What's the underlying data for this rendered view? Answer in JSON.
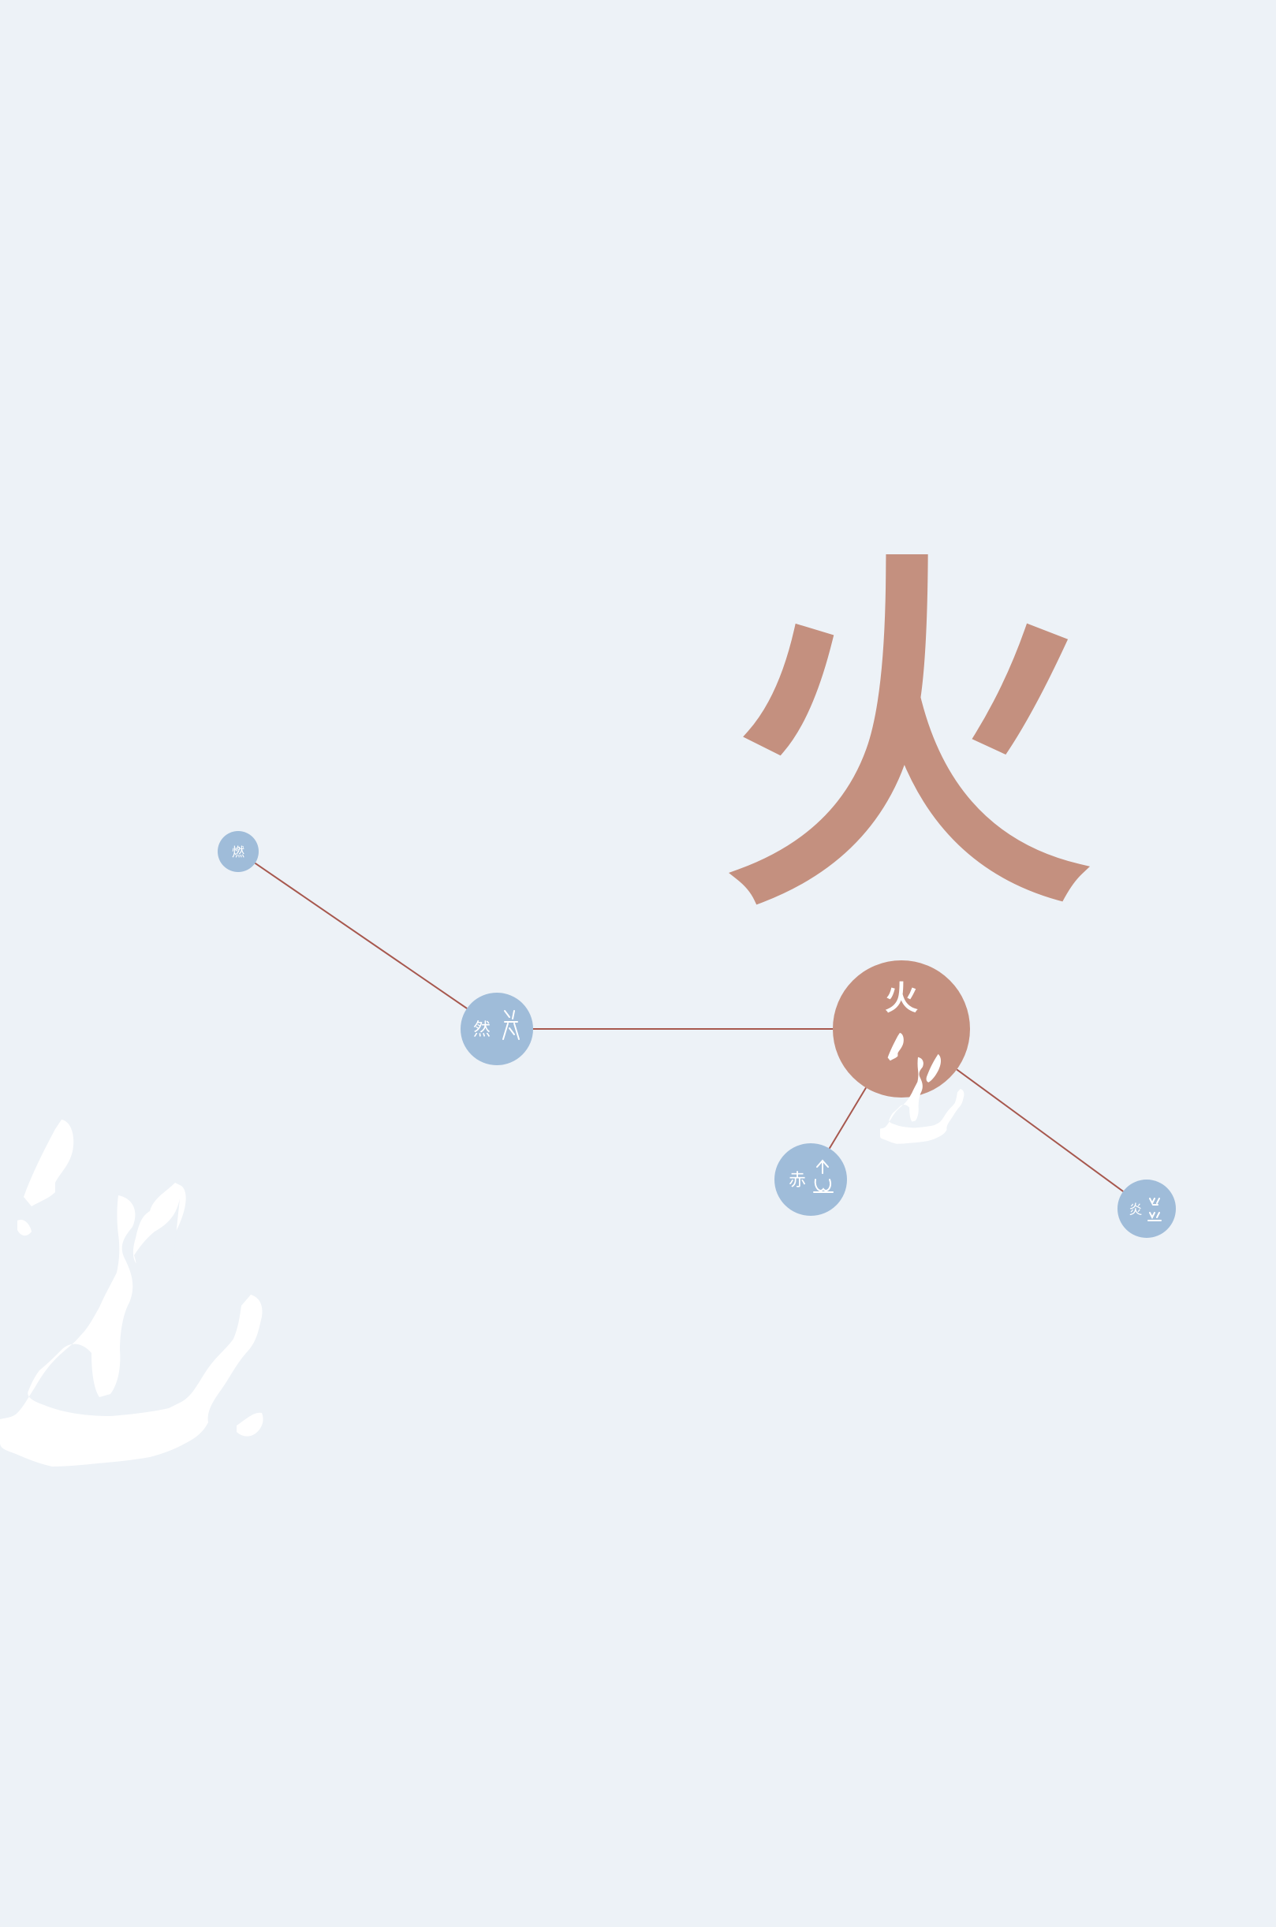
{
  "main_character": "火",
  "colors": {
    "background": "#edf2f7",
    "accent": "#c4907f",
    "node": "#9fbcd9",
    "link": "#a7584e",
    "glyph": "#ffffff"
  },
  "center_node": {
    "character": "火",
    "icon": "fire-oracle-glyph"
  },
  "related_nodes": [
    {
      "id": "ran-burn",
      "character": "燃",
      "icon": ""
    },
    {
      "id": "ran",
      "character": "然",
      "icon": "ran-oracle-glyph"
    },
    {
      "id": "chi",
      "character": "赤",
      "icon": "chi-oracle-glyph"
    },
    {
      "id": "yan",
      "character": "炎",
      "icon": "yan-oracle-glyph"
    }
  ],
  "links": [
    [
      "ran-burn",
      "ran"
    ],
    [
      "ran",
      "center"
    ],
    [
      "center",
      "chi"
    ],
    [
      "center",
      "yan"
    ]
  ],
  "decorations": {
    "large_oracle_icon": "fire-oracle-glyph"
  }
}
